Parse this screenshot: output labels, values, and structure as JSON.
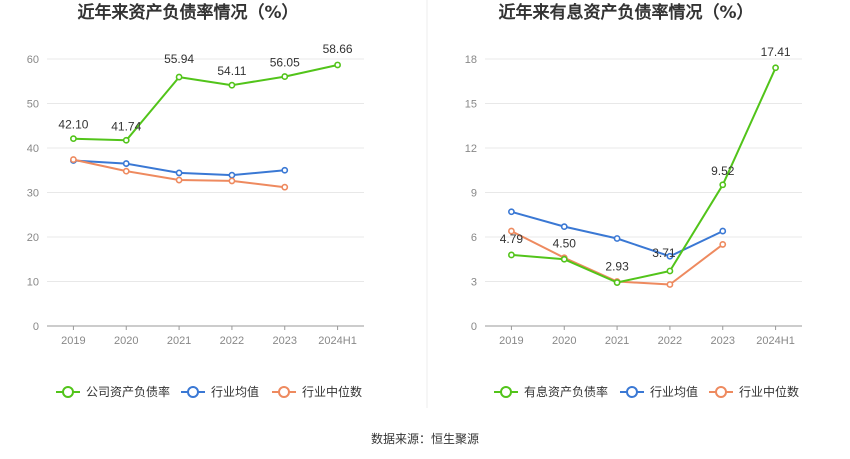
{
  "chart_data": [
    {
      "type": "line",
      "title": "近年来资产负债率情况（%）",
      "categories": [
        "2019",
        "2020",
        "2021",
        "2022",
        "2023",
        "2024H1"
      ],
      "ylim": [
        0,
        60
      ],
      "yticks": [
        0,
        10,
        20,
        30,
        40,
        50,
        60
      ],
      "grid": true,
      "legend_position": "bottom",
      "series": [
        {
          "name": "公司资产负债率",
          "color": "#52c41a",
          "values": [
            42.1,
            41.74,
            55.94,
            54.11,
            56.05,
            58.66
          ],
          "labels": [
            "42.10",
            "41.74",
            "55.94",
            "54.11",
            "56.05",
            "58.66"
          ]
        },
        {
          "name": "行业均值",
          "color": "#3a78d4",
          "values": [
            37.2,
            36.5,
            34.4,
            33.9,
            35.0,
            null
          ]
        },
        {
          "name": "行业中位数",
          "color": "#ee8a5f",
          "values": [
            37.4,
            34.8,
            32.8,
            32.6,
            31.2,
            null
          ]
        }
      ]
    },
    {
      "type": "line",
      "title": "近年来有息资产负债率情况（%）",
      "categories": [
        "2019",
        "2020",
        "2021",
        "2022",
        "2023",
        "2024H1"
      ],
      "ylim": [
        0,
        18
      ],
      "yticks": [
        0,
        3,
        6,
        9,
        12,
        15,
        18
      ],
      "grid": true,
      "legend_position": "bottom",
      "series": [
        {
          "name": "有息资产负债率",
          "color": "#52c41a",
          "values": [
            4.79,
            4.5,
            2.93,
            3.71,
            9.52,
            17.41
          ],
          "labels": [
            "4.79",
            "4.50",
            "2.93",
            "3.71",
            "9.52",
            "17.41"
          ]
        },
        {
          "name": "行业均值",
          "color": "#3a78d4",
          "values": [
            7.7,
            6.7,
            5.9,
            4.7,
            6.4,
            null
          ]
        },
        {
          "name": "行业中位数",
          "color": "#ee8a5f",
          "values": [
            6.4,
            4.6,
            3.0,
            2.8,
            5.5,
            null
          ]
        }
      ]
    }
  ],
  "footer": {
    "source": "数据来源：恒生聚源"
  }
}
